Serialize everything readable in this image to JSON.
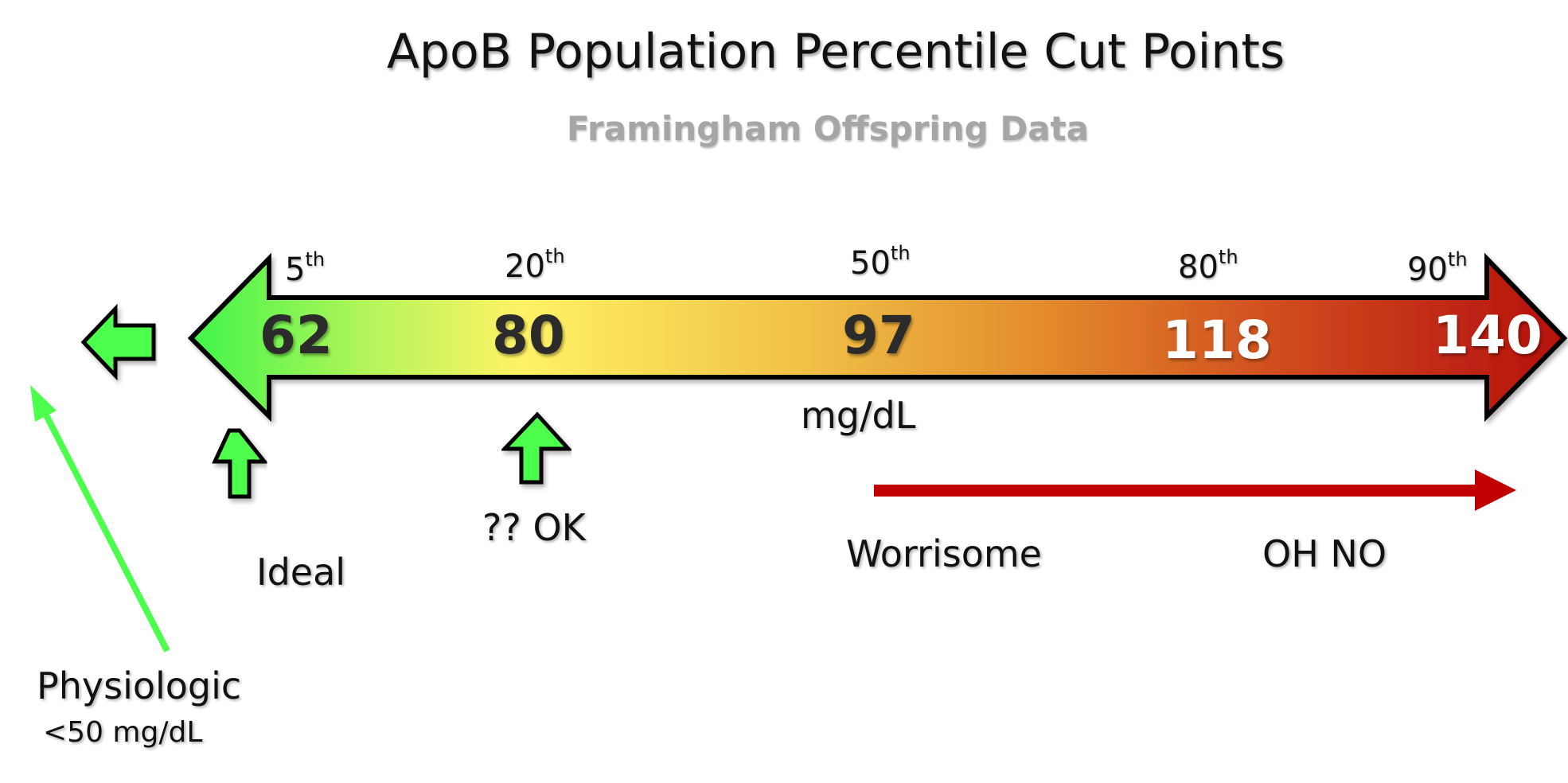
{
  "title": "ApoB Population Percentile Cut Points",
  "subtitle": "Framingham Offspring Data",
  "percentiles": [
    {
      "rank": "5",
      "suffix": "th",
      "value": "62"
    },
    {
      "rank": "20",
      "suffix": "th",
      "value": "80"
    },
    {
      "rank": "50",
      "suffix": "th",
      "value": "97"
    },
    {
      "rank": "80",
      "suffix": "th",
      "value": "118"
    },
    {
      "rank": "90",
      "suffix": "th",
      "value": "140"
    }
  ],
  "unit": "mg/dL",
  "labels": {
    "ideal": "Ideal",
    "ok": "?? OK",
    "worrisome": "Worrisome",
    "oh_no": "OH NO",
    "physiologic": "Physiologic",
    "physiologic_value": "<50 mg/dL"
  },
  "colors": {
    "green": "#4dff4d",
    "yellow": "#fff266",
    "orange": "#e38b2d",
    "red": "#b8130e",
    "red_arrow": "#c00000"
  }
}
